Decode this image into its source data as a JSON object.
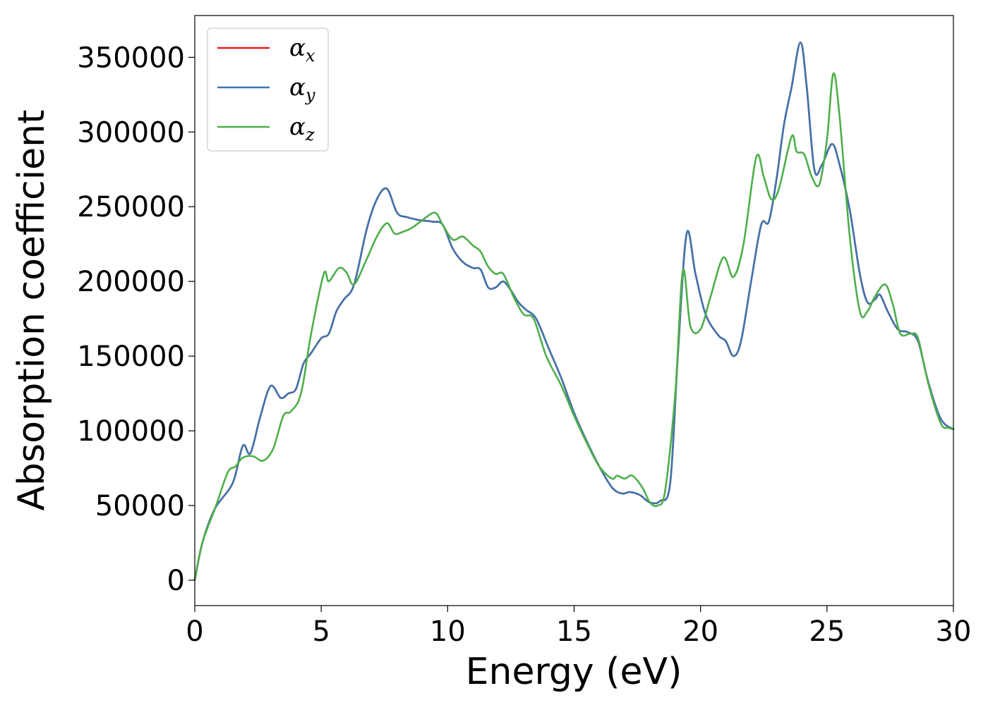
{
  "chart_data": {
    "type": "line",
    "xlabel": "Energy (eV)",
    "ylabel": "Absorption coefficient",
    "xlim": [
      0,
      30
    ],
    "ylim": [
      -17000,
      378000
    ],
    "xticks": [
      0,
      5,
      10,
      15,
      20,
      25,
      30
    ],
    "yticks": [
      0,
      50000,
      100000,
      150000,
      200000,
      250000,
      300000,
      350000
    ],
    "grid": false,
    "legend_position": "top-left",
    "series": [
      {
        "name": "αx",
        "symbol": "α",
        "subscript": "x",
        "color": "#e41a1c",
        "x": [
          0,
          0.3,
          0.8,
          1.5,
          1.9,
          2.2,
          2.6,
          3.0,
          3.4,
          3.7,
          4.0,
          4.3,
          4.6,
          5.0,
          5.3,
          5.6,
          5.9,
          6.3,
          6.8,
          7.2,
          7.6,
          8.0,
          8.4,
          8.9,
          9.4,
          9.8,
          10.2,
          10.6,
          11.0,
          11.3,
          11.6,
          11.9,
          12.2,
          12.5,
          12.8,
          13.1,
          13.5,
          14.0,
          14.5,
          15.0,
          15.5,
          16.0,
          16.5,
          16.9,
          17.2,
          17.6,
          18.0,
          18.4,
          18.8,
          19.1,
          19.45,
          19.8,
          20.2,
          20.7,
          21.0,
          21.3,
          21.6,
          22.0,
          22.4,
          22.7,
          23.0,
          23.3,
          23.6,
          23.95,
          24.2,
          24.5,
          24.8,
          25.2,
          25.5,
          25.9,
          26.3,
          26.6,
          26.9,
          27.1,
          27.4,
          27.8,
          28.2,
          28.6,
          29.0,
          29.5,
          30.0
        ],
        "values": [
          0,
          25000,
          48000,
          65000,
          90000,
          85000,
          110000,
          130000,
          122000,
          125000,
          128000,
          145000,
          152000,
          162000,
          165000,
          180000,
          188000,
          198000,
          235000,
          255000,
          262000,
          246000,
          243000,
          241000,
          240000,
          238000,
          222000,
          213000,
          209000,
          208000,
          196000,
          196000,
          200000,
          194000,
          186000,
          181000,
          175000,
          155000,
          135000,
          112000,
          93000,
          76000,
          62000,
          58000,
          59000,
          57000,
          52000,
          53000,
          65000,
          150000,
          232000,
          205000,
          178000,
          164000,
          160000,
          150000,
          160000,
          200000,
          238000,
          240000,
          268000,
          305000,
          330000,
          360000,
          330000,
          275000,
          278000,
          292000,
          278000,
          248000,
          205000,
          186000,
          188000,
          191000,
          180000,
          168000,
          166000,
          160000,
          133000,
          108000,
          101000
        ]
      },
      {
        "name": "αy",
        "symbol": "α",
        "subscript": "y",
        "color": "#3e75ae",
        "x": [
          0,
          0.3,
          0.8,
          1.5,
          1.9,
          2.2,
          2.6,
          3.0,
          3.4,
          3.7,
          4.0,
          4.3,
          4.6,
          5.0,
          5.3,
          5.6,
          5.9,
          6.3,
          6.8,
          7.2,
          7.6,
          8.0,
          8.4,
          8.9,
          9.4,
          9.8,
          10.2,
          10.6,
          11.0,
          11.3,
          11.6,
          11.9,
          12.2,
          12.5,
          12.8,
          13.1,
          13.5,
          14.0,
          14.5,
          15.0,
          15.5,
          16.0,
          16.5,
          16.9,
          17.2,
          17.6,
          18.0,
          18.4,
          18.8,
          19.1,
          19.45,
          19.8,
          20.2,
          20.7,
          21.0,
          21.3,
          21.6,
          22.0,
          22.4,
          22.7,
          23.0,
          23.3,
          23.6,
          23.95,
          24.2,
          24.5,
          24.8,
          25.2,
          25.5,
          25.9,
          26.3,
          26.6,
          26.9,
          27.1,
          27.4,
          27.8,
          28.2,
          28.6,
          29.0,
          29.5,
          30.0
        ],
        "values": [
          0,
          25000,
          48000,
          65000,
          90000,
          85000,
          110000,
          130000,
          122000,
          125000,
          128000,
          145000,
          152000,
          162000,
          165000,
          180000,
          188000,
          198000,
          235000,
          255000,
          262000,
          246000,
          243000,
          241000,
          240000,
          238000,
          222000,
          213000,
          209000,
          208000,
          196000,
          196000,
          200000,
          194000,
          186000,
          181000,
          175000,
          155000,
          135000,
          112000,
          93000,
          76000,
          62000,
          58000,
          59000,
          57000,
          52000,
          53000,
          65000,
          150000,
          232000,
          205000,
          178000,
          164000,
          160000,
          150000,
          160000,
          200000,
          238000,
          240000,
          268000,
          305000,
          330000,
          360000,
          330000,
          275000,
          278000,
          292000,
          278000,
          248000,
          205000,
          186000,
          188000,
          191000,
          180000,
          168000,
          166000,
          160000,
          133000,
          108000,
          101000
        ]
      },
      {
        "name": "αz",
        "symbol": "α",
        "subscript": "z",
        "color": "#4daf4a",
        "x": [
          0,
          0.3,
          0.8,
          1.3,
          1.6,
          1.9,
          2.3,
          2.7,
          3.1,
          3.5,
          3.8,
          4.2,
          4.6,
          5.1,
          5.3,
          5.7,
          6.0,
          6.3,
          6.8,
          7.2,
          7.6,
          7.9,
          8.2,
          8.6,
          9.0,
          9.5,
          9.8,
          10.2,
          10.6,
          11.0,
          11.3,
          11.6,
          11.9,
          12.2,
          12.6,
          13.0,
          13.4,
          13.9,
          14.5,
          15.0,
          15.5,
          16.0,
          16.5,
          16.7,
          17.0,
          17.3,
          17.7,
          18.0,
          18.3,
          18.6,
          19.0,
          19.3,
          19.6,
          20.0,
          20.4,
          20.9,
          21.3,
          21.7,
          22.2,
          22.5,
          22.8,
          23.1,
          23.6,
          23.8,
          24.1,
          24.4,
          24.7,
          25.0,
          25.25,
          25.5,
          25.9,
          26.3,
          26.6,
          26.9,
          27.3,
          27.6,
          27.9,
          28.3,
          28.6,
          29.0,
          29.5,
          29.8,
          30.0
        ],
        "values": [
          0,
          25000,
          48000,
          72000,
          76000,
          82000,
          83000,
          80000,
          88000,
          110000,
          113000,
          125000,
          165000,
          205000,
          200000,
          209000,
          206000,
          198000,
          215000,
          230000,
          239000,
          232000,
          233000,
          236000,
          241000,
          246000,
          238000,
          228000,
          230000,
          224000,
          220000,
          210000,
          205000,
          205000,
          190000,
          178000,
          175000,
          150000,
          130000,
          110000,
          92000,
          76000,
          68000,
          70000,
          68000,
          70000,
          62000,
          52000,
          50000,
          60000,
          125000,
          207000,
          170000,
          168000,
          190000,
          216000,
          203000,
          225000,
          283000,
          270000,
          255000,
          262000,
          297000,
          287000,
          285000,
          270000,
          265000,
          295000,
          339000,
          310000,
          230000,
          180000,
          180000,
          190000,
          198000,
          185000,
          165000,
          165000,
          162000,
          132000,
          105000,
          102000,
          101000
        ]
      }
    ]
  }
}
